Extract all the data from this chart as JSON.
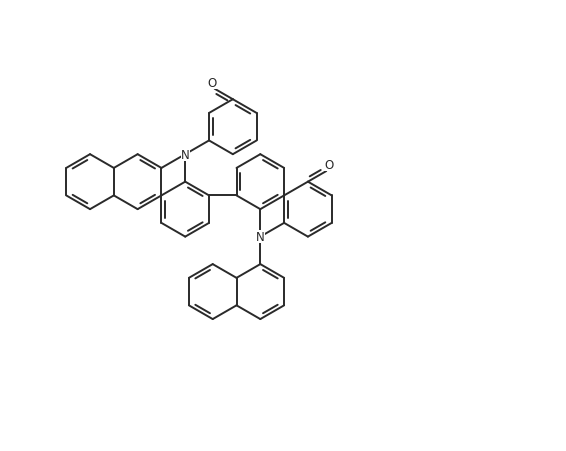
{
  "bg_color": "#ffffff",
  "line_color": "#2a2a2a",
  "line_width": 1.4,
  "figsize": [
    5.66,
    4.52
  ],
  "dpi": 100,
  "xlim": [
    0,
    10
  ],
  "ylim": [
    0,
    8.5
  ]
}
